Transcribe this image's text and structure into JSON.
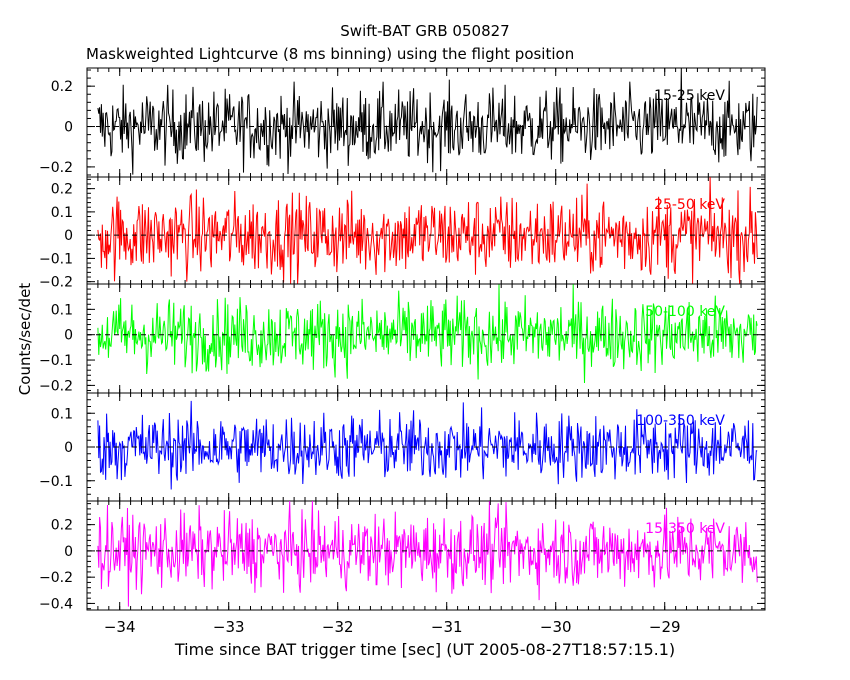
{
  "header": {
    "title": "Swift-BAT GRB 050827",
    "subtitle": "Maskweighted Lightcurve (8 ms binning) using the flight position"
  },
  "chart_data": {
    "type": "line",
    "title": "Swift-BAT GRB 050827",
    "subtitle": "Maskweighted Lightcurve (8 ms binning) using the flight position",
    "xlabel": "Time since BAT trigger time [sec] (UT 2005-08-27T18:57:15.1)",
    "ylabel": "Counts/sec/det",
    "xlim": [
      -34.3,
      -28.08
    ],
    "x_start": -34.2,
    "x_end": -28.15,
    "bin_size": 0.008,
    "xticks": [
      "-34",
      "-33",
      "-32",
      "-31",
      "-30",
      "-29"
    ],
    "xtick_values": [
      -34,
      -33,
      -32,
      -31,
      -30,
      -29
    ],
    "panels": [
      {
        "name": "15-25 keV",
        "color": "#000000",
        "ylim": [
          -0.25,
          0.29
        ],
        "yticks": [
          -0.2,
          0,
          0.2
        ],
        "ytick_labels": [
          "−0.2",
          "0",
          "0.2"
        ],
        "amplitude": 0.09,
        "spike": {
          "x": -28.85,
          "y": 0.29
        }
      },
      {
        "name": "25-50 keV",
        "color": "#ff0000",
        "ylim": [
          -0.21,
          0.25
        ],
        "yticks": [
          -0.2,
          -0.1,
          0,
          0.1,
          0.2
        ],
        "ytick_labels": [
          "−0.2",
          "−0.1",
          "0",
          "0.1",
          "0.2"
        ],
        "amplitude": 0.085,
        "spike": null
      },
      {
        "name": "50-100 keV",
        "color": "#00ff00",
        "ylim": [
          -0.23,
          0.2
        ],
        "yticks": [
          -0.2,
          -0.1,
          0,
          0.1
        ],
        "ytick_labels": [
          "−0.2",
          "−0.1",
          "0",
          "0.1"
        ],
        "amplitude": 0.07,
        "spike": null
      },
      {
        "name": "100-350 keV",
        "color": "#0000ff",
        "ylim": [
          -0.16,
          0.16
        ],
        "yticks": [
          -0.1,
          0,
          0.1
        ],
        "ytick_labels": [
          "−0.1",
          "0",
          "0.1"
        ],
        "amplitude": 0.05,
        "spike": null
      },
      {
        "name": "15-350 keV",
        "color": "#ff00ff",
        "ylim": [
          -0.45,
          0.38
        ],
        "yticks": [
          -0.4,
          -0.2,
          0,
          0.2
        ],
        "ytick_labels": [
          "−0.4",
          "−0.2",
          "0",
          "0.2"
        ],
        "amplitude": 0.14,
        "spike": null
      }
    ],
    "zero_line": "dashed",
    "grid": false,
    "legend": "panel labels top-right"
  }
}
